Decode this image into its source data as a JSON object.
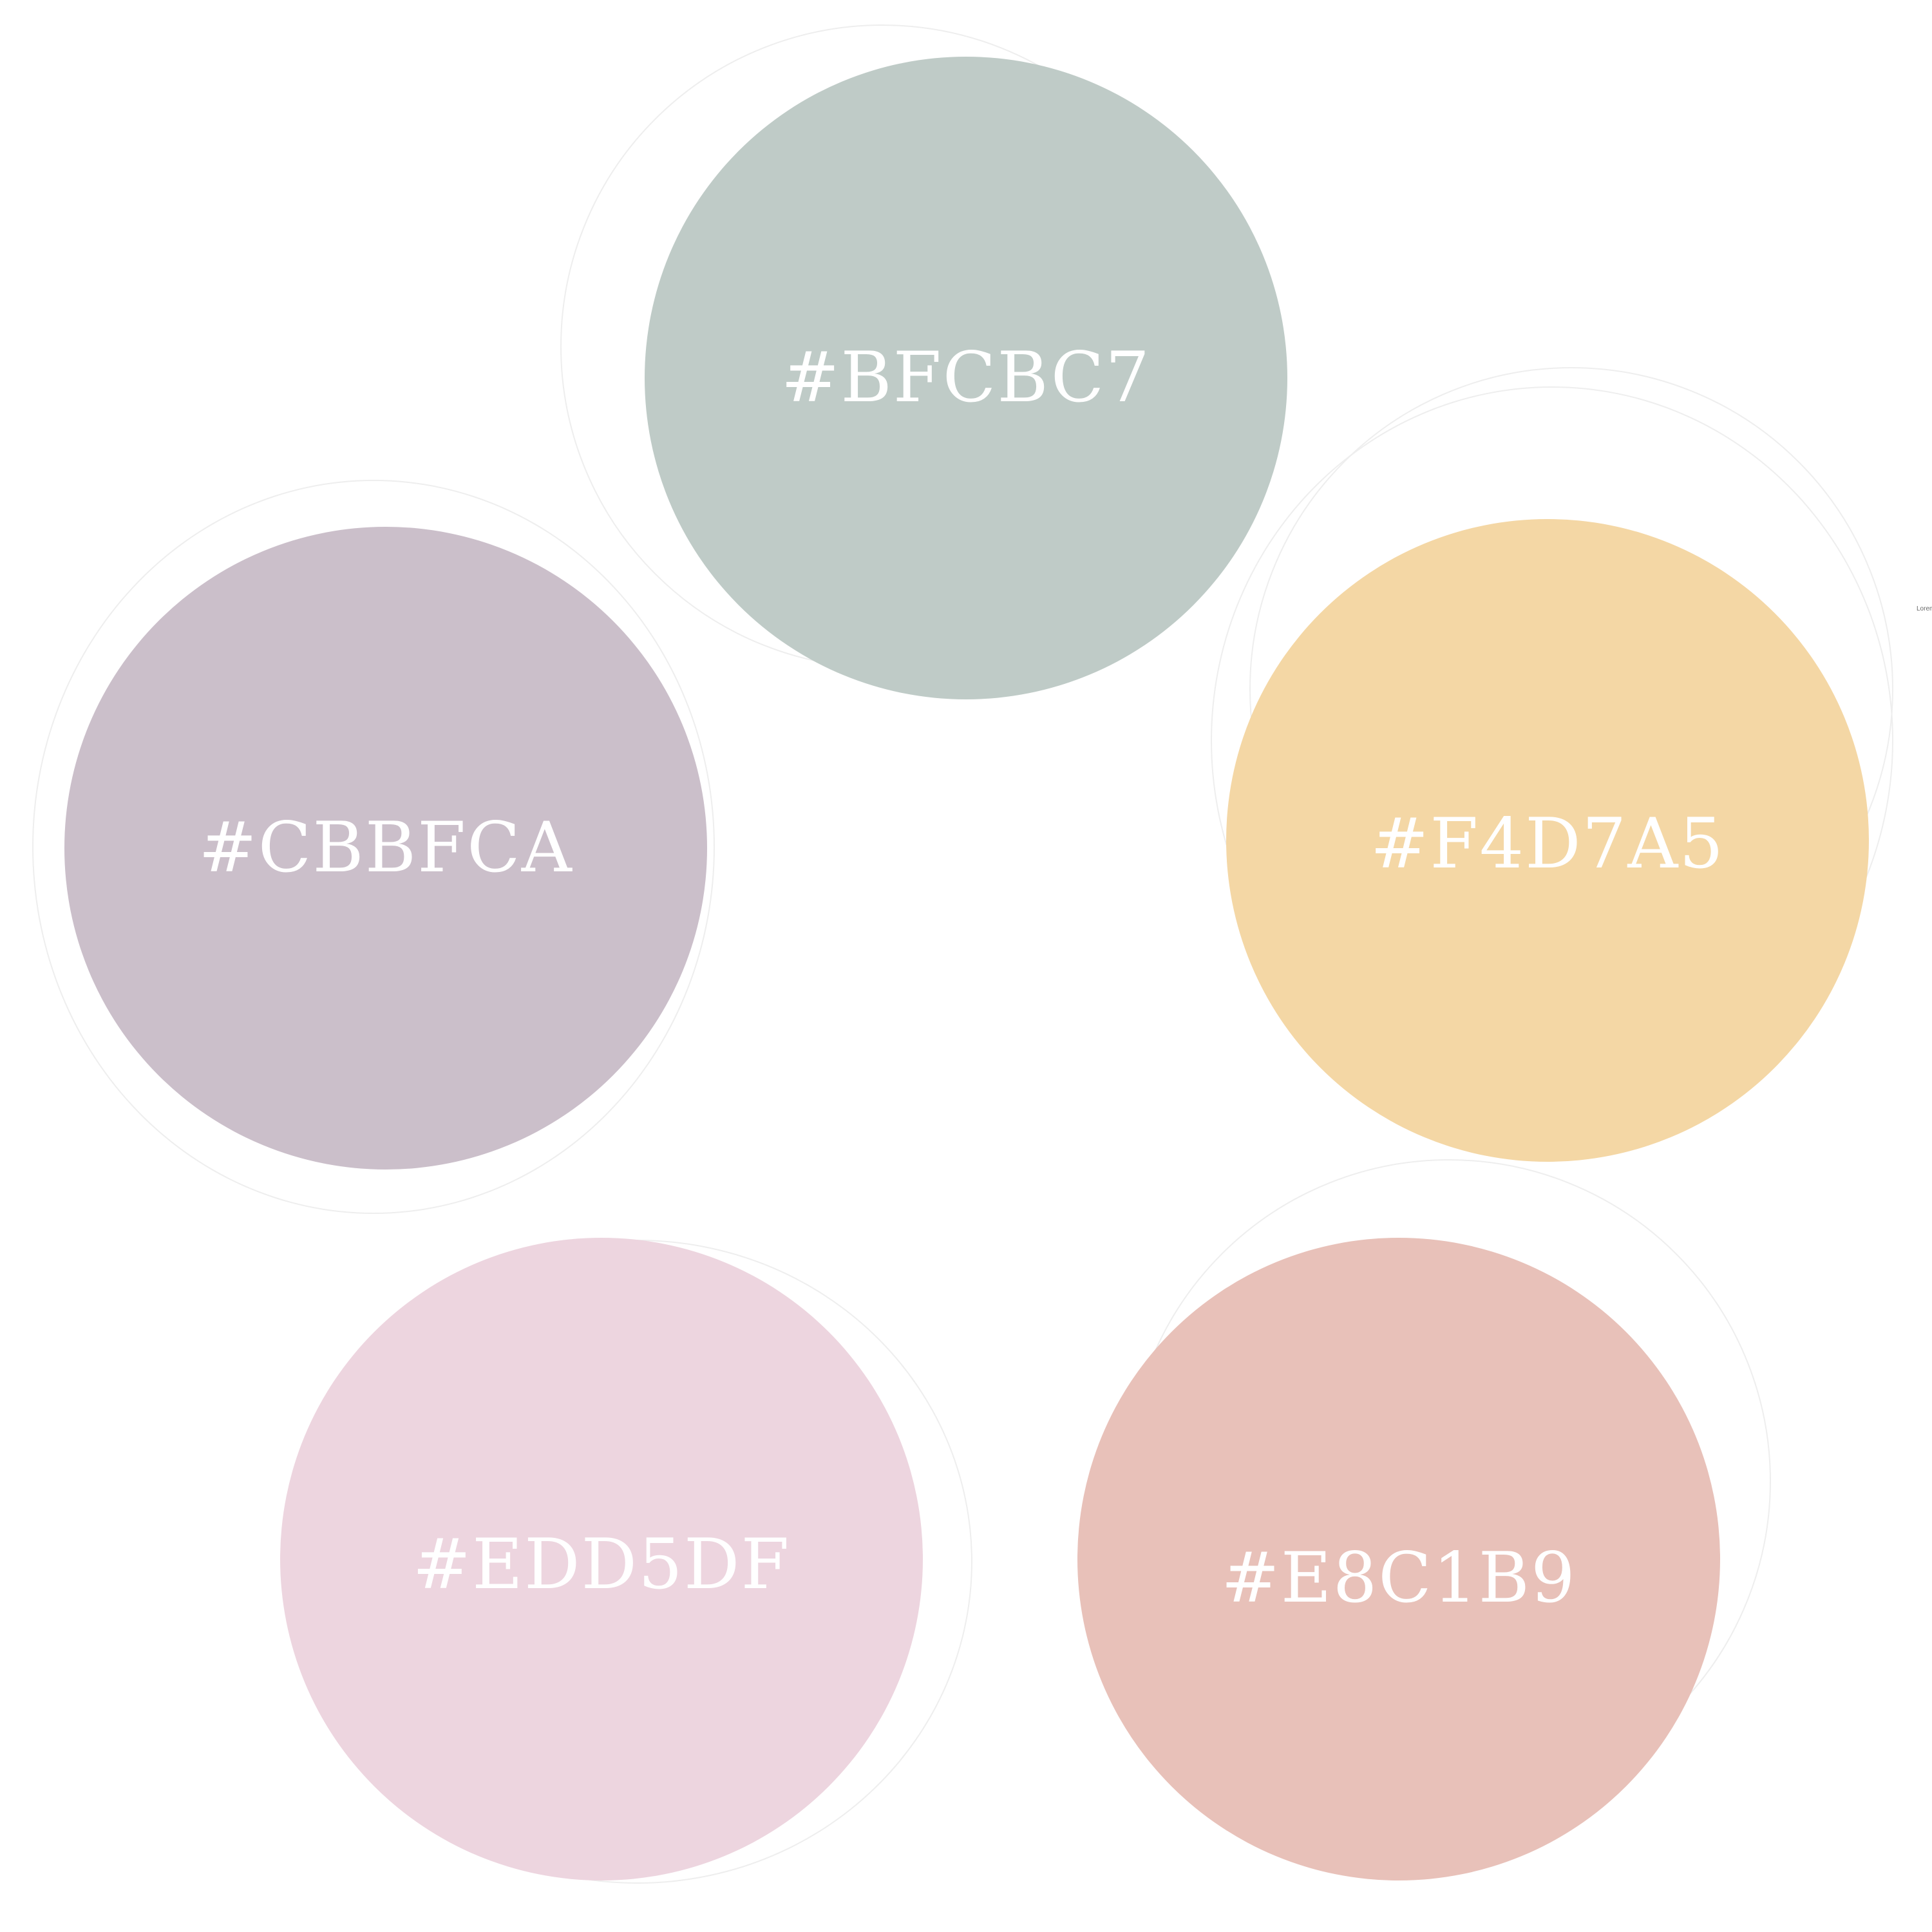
{
  "palette": {
    "swatches": [
      {
        "hex": "#BFCBC7",
        "label": "#BFCBC7"
      },
      {
        "hex": "#CBBFCA",
        "label": "#CBBFCA"
      },
      {
        "hex": "#F4D7A5",
        "label": "#F4D7A5"
      },
      {
        "hex": "#EDD5DF",
        "label": "#EDD5DF"
      },
      {
        "hex": "#E8C1B9",
        "label": "#E8C1B9"
      }
    ]
  },
  "footnote": "Lorem"
}
